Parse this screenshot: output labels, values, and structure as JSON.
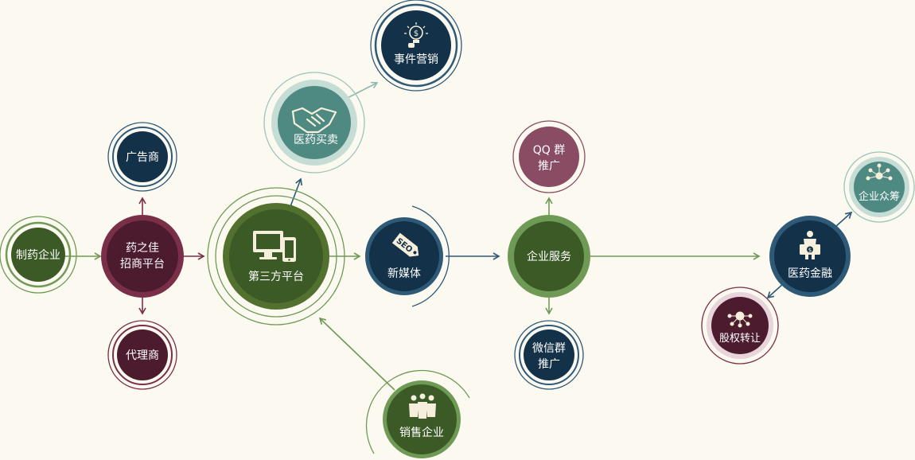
{
  "colors": {
    "background": "#fbf9f0",
    "green_dark": "#3b5a26",
    "green_mid": "#52712f",
    "green_line": "#6f9a55",
    "navy": "#133148",
    "teal": "#4f8a82",
    "teal_light": "#9cc4bb",
    "maroon": "#4c1c2e",
    "maroon_line": "#7a2f48",
    "rose": "#8a4c63"
  },
  "nodes": {
    "pharma_company": {
      "label": "制药企业"
    },
    "yaozhijia": {
      "line1": "药之佳",
      "line2": "招商平台"
    },
    "advertiser": {
      "label": "广告商"
    },
    "agent": {
      "label": "代理商"
    },
    "third_party_platform": {
      "label": "第三方平台"
    },
    "pharma_trade": {
      "label": "医药买卖"
    },
    "event_marketing": {
      "label": "事件营销"
    },
    "new_media": {
      "label": "新媒体",
      "icon_text": "SEO"
    },
    "sales_company": {
      "label": "销售企业"
    },
    "enterprise_service": {
      "label": "企业服务"
    },
    "qq_group": {
      "line1": "QQ 群",
      "line2": "推广"
    },
    "wechat_group": {
      "line1": "微信群",
      "line2": "推广"
    },
    "pharma_finance": {
      "label": "医药金融"
    },
    "crowdfunding": {
      "label": "企业众筹"
    },
    "equity_transfer": {
      "label": "股权转让"
    }
  }
}
